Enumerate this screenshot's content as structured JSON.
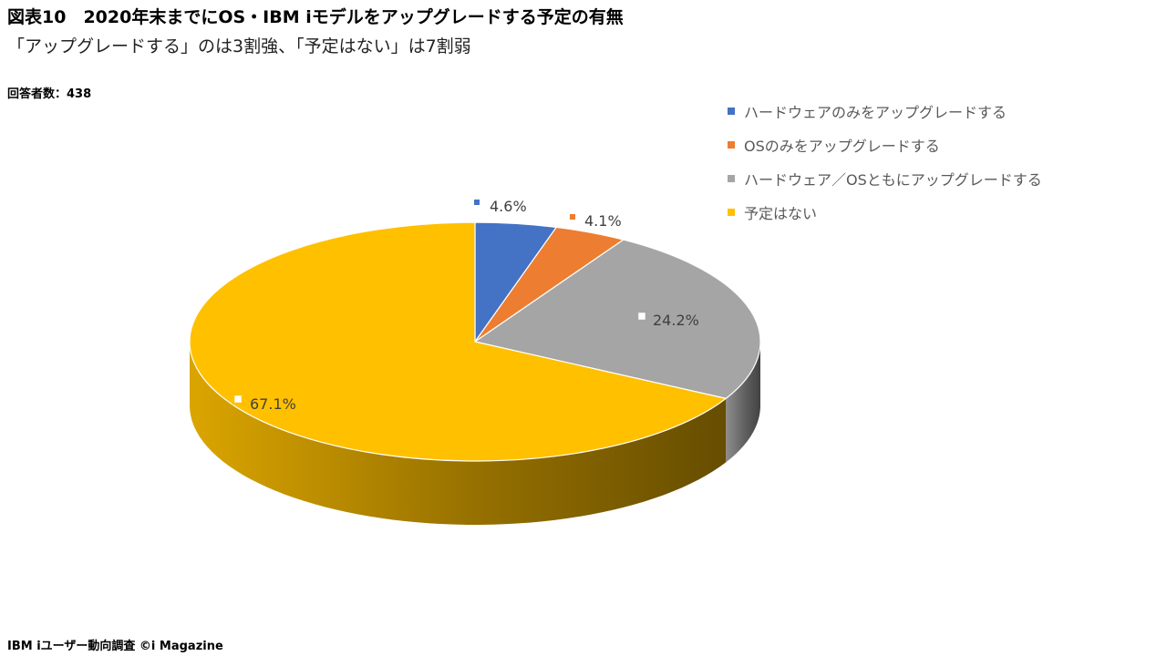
{
  "header": {
    "title": "図表10　2020年末までにOS・IBM iモデルをアップグレードする予定の有無",
    "subtitle": "「アップグレードする」のは3割強、「予定はない」は7割弱",
    "respondents": "回答者数：438"
  },
  "footer": {
    "source": "IBM iユーザー動向調査 ©i Magazine"
  },
  "chart_data": {
    "type": "pie",
    "title": "図表10　2020年末までにOS・IBM iモデルをアップグレードする予定の有無",
    "legend_position": "top-right",
    "slices": [
      {
        "label": "ハードウェアのみをアップグレードする",
        "value": 4.6,
        "display": "4.6%",
        "color": "#4472C4"
      },
      {
        "label": "OSのみをアップグレードする",
        "value": 4.1,
        "display": "4.1%",
        "color": "#ED7D31"
      },
      {
        "label": "ハードウェア／OSともにアップグレードする",
        "value": 24.2,
        "display": "24.2%",
        "color": "#A5A5A5"
      },
      {
        "label": "予定はない",
        "value": 67.1,
        "display": "67.1%",
        "color": "#FFC000"
      }
    ]
  }
}
